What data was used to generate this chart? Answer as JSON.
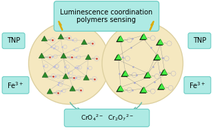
{
  "bg_color": "#ffffff",
  "title_box_color": "#aeeae4",
  "title_box_edge": "#6cccc4",
  "title_text": "Luminescence coordination\npolymers sensing",
  "title_fontsize": 7.0,
  "label_box_color": "#aeeae4",
  "label_box_edge": "#6cccc4",
  "fe_label": "Fe$^{3+}$",
  "tnp_label": "TNP",
  "bottom_label": "CrO$_4$$^{2-}$  Cr$_2$O$_7$$^{2-}$",
  "polymer_bg": "#f5e8c0",
  "polymer_edge": "#ddd0a0",
  "crystal1_green": "#2a8a2a",
  "crystal2_green": "#44ee44",
  "crystal2_dark": "#111111",
  "lightning_color": "#ddaa00",
  "arrow_color": "#66bbaa",
  "network_line": "#aaaaaa",
  "atom_color": "#bbbbdd",
  "red_atom": "#cc2222",
  "fig_width": 3.09,
  "fig_height": 1.89
}
